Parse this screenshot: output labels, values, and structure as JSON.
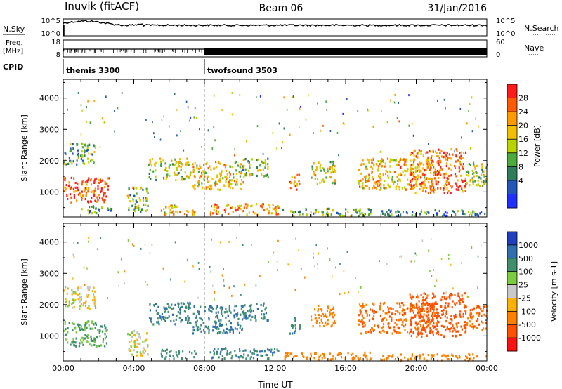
{
  "header": {
    "station": "Inuvik (fitACF)",
    "beam": "Beam 06",
    "date": "31/Jan/2016"
  },
  "panels": {
    "nsky_label": "N.Sky",
    "nsearch_label": "N.Search",
    "nsky_ticks": [
      "10^5",
      "10^0"
    ],
    "nsearch_ticks": [
      "10^5",
      "10^0"
    ],
    "freq_label_1": "Freq.",
    "freq_label_2": "[MHz]",
    "freq_ticks": [
      "18",
      "8"
    ],
    "nave_label": "Nave",
    "nave_ticks": [
      "60",
      "0"
    ],
    "cpid_label": "CPID",
    "cpid_modes": [
      {
        "name": "themis 3300",
        "start_hour": 0
      },
      {
        "name": "twofsound 3503",
        "start_hour": 8
      }
    ]
  },
  "chart_data": [
    {
      "type": "heatmap",
      "title": "",
      "xlabel": "",
      "ylabel": "Slant Range [km]",
      "xlim": [
        0,
        24
      ],
      "ylim": [
        200,
        4600
      ],
      "x_tick_labels": [
        "00:00",
        "04:00",
        "08:00",
        "12:00",
        "16:00",
        "20:00",
        "00:00"
      ],
      "y_tick_labels": [
        "1000",
        "2000",
        "3000",
        "4000"
      ],
      "colorbar": {
        "label": "Power [dB]",
        "ticks": [
          "28",
          "24",
          "20",
          "16",
          "12",
          "8",
          "4"
        ],
        "colors": [
          "#ff1a1a",
          "#ff5a00",
          "#ff9a00",
          "#f2c000",
          "#b8d400",
          "#4cab3c",
          "#2e7d5a",
          "#2256b8",
          "#1f2fff"
        ]
      },
      "echo_regions": [
        {
          "t0": 0.0,
          "t1": 2.6,
          "r0": 700,
          "r1": 1500,
          "value": 26
        },
        {
          "t0": 0.0,
          "t1": 1.8,
          "r0": 1900,
          "r1": 2600,
          "value": 12
        },
        {
          "t0": 1.0,
          "t1": 2.8,
          "r0": 350,
          "r1": 600,
          "value": 10
        },
        {
          "t0": 3.6,
          "t1": 4.8,
          "r0": 400,
          "r1": 1200,
          "value": 14
        },
        {
          "t0": 4.8,
          "t1": 7.2,
          "r0": 1400,
          "r1": 2100,
          "value": 16
        },
        {
          "t0": 5.5,
          "t1": 7.5,
          "r0": 300,
          "r1": 600,
          "value": 20
        },
        {
          "t0": 7.3,
          "t1": 10.2,
          "r0": 1100,
          "r1": 2000,
          "value": 18
        },
        {
          "t0": 8.3,
          "t1": 12.2,
          "r0": 300,
          "r1": 650,
          "value": 22
        },
        {
          "t0": 10.1,
          "t1": 11.6,
          "r0": 1500,
          "r1": 2100,
          "value": 14
        },
        {
          "t0": 12.4,
          "t1": 17.5,
          "r0": 250,
          "r1": 500,
          "value": 12
        },
        {
          "t0": 12.8,
          "t1": 13.4,
          "r0": 1100,
          "r1": 1600,
          "value": 22
        },
        {
          "t0": 14.0,
          "t1": 15.4,
          "r0": 1300,
          "r1": 2000,
          "value": 16
        },
        {
          "t0": 16.7,
          "t1": 21.2,
          "r0": 1100,
          "r1": 2100,
          "value": 20
        },
        {
          "t0": 19.6,
          "t1": 22.8,
          "r0": 1000,
          "r1": 2400,
          "value": 24
        },
        {
          "t0": 22.8,
          "t1": 24.0,
          "r0": 1200,
          "r1": 2000,
          "value": 16
        },
        {
          "t0": 18.0,
          "t1": 24.0,
          "r0": 250,
          "r1": 450,
          "value": 8
        }
      ]
    },
    {
      "type": "heatmap",
      "title": "",
      "xlabel": "Time UT",
      "ylabel": "Slant Range [km]",
      "xlim": [
        0,
        24
      ],
      "ylim": [
        200,
        4600
      ],
      "x_tick_labels": [
        "00:00",
        "04:00",
        "08:00",
        "12:00",
        "16:00",
        "20:00",
        "00:00"
      ],
      "y_tick_labels": [
        "1000",
        "2000",
        "3000",
        "4000"
      ],
      "colorbar": {
        "label": "Velocity [m s-1]",
        "ticks": [
          "1000",
          "500",
          "100",
          "25",
          "-25",
          "-100",
          "-500",
          "-1000"
        ],
        "colors": [
          "#1f3fbf",
          "#2f6fb0",
          "#3f8f6f",
          "#7ccc3f",
          "#c9c9c9",
          "#ffb000",
          "#ff8000",
          "#ff5000",
          "#ff1010"
        ]
      },
      "echo_regions": [
        {
          "t0": 0.0,
          "t1": 2.6,
          "r0": 700,
          "r1": 1500,
          "value": 80
        },
        {
          "t0": 0.0,
          "t1": 1.8,
          "r0": 1900,
          "r1": 2600,
          "value": 0
        },
        {
          "t0": 3.6,
          "t1": 4.8,
          "r0": 400,
          "r1": 1200,
          "value": 0
        },
        {
          "t0": 4.8,
          "t1": 7.2,
          "r0": 1400,
          "r1": 2100,
          "value": 300
        },
        {
          "t0": 5.5,
          "t1": 7.5,
          "r0": 300,
          "r1": 600,
          "value": 120
        },
        {
          "t0": 7.3,
          "t1": 10.2,
          "r0": 1100,
          "r1": 2000,
          "value": 300
        },
        {
          "t0": 8.3,
          "t1": 12.2,
          "r0": 300,
          "r1": 650,
          "value": 300
        },
        {
          "t0": 10.1,
          "t1": 11.6,
          "r0": 1500,
          "r1": 2100,
          "value": 300
        },
        {
          "t0": 12.4,
          "t1": 17.5,
          "r0": 250,
          "r1": 500,
          "value": -150
        },
        {
          "t0": 12.8,
          "t1": 13.4,
          "r0": 1100,
          "r1": 1600,
          "value": 300
        },
        {
          "t0": 14.0,
          "t1": 15.4,
          "r0": 1300,
          "r1": 2000,
          "value": -200
        },
        {
          "t0": 16.7,
          "t1": 21.2,
          "r0": 1100,
          "r1": 2100,
          "value": -300
        },
        {
          "t0": 19.6,
          "t1": 22.8,
          "r0": 1000,
          "r1": 2400,
          "value": -350
        },
        {
          "t0": 22.8,
          "t1": 24.0,
          "r0": 1200,
          "r1": 2000,
          "value": -300
        },
        {
          "t0": 18.0,
          "t1": 24.0,
          "r0": 250,
          "r1": 450,
          "value": -150
        }
      ]
    }
  ]
}
